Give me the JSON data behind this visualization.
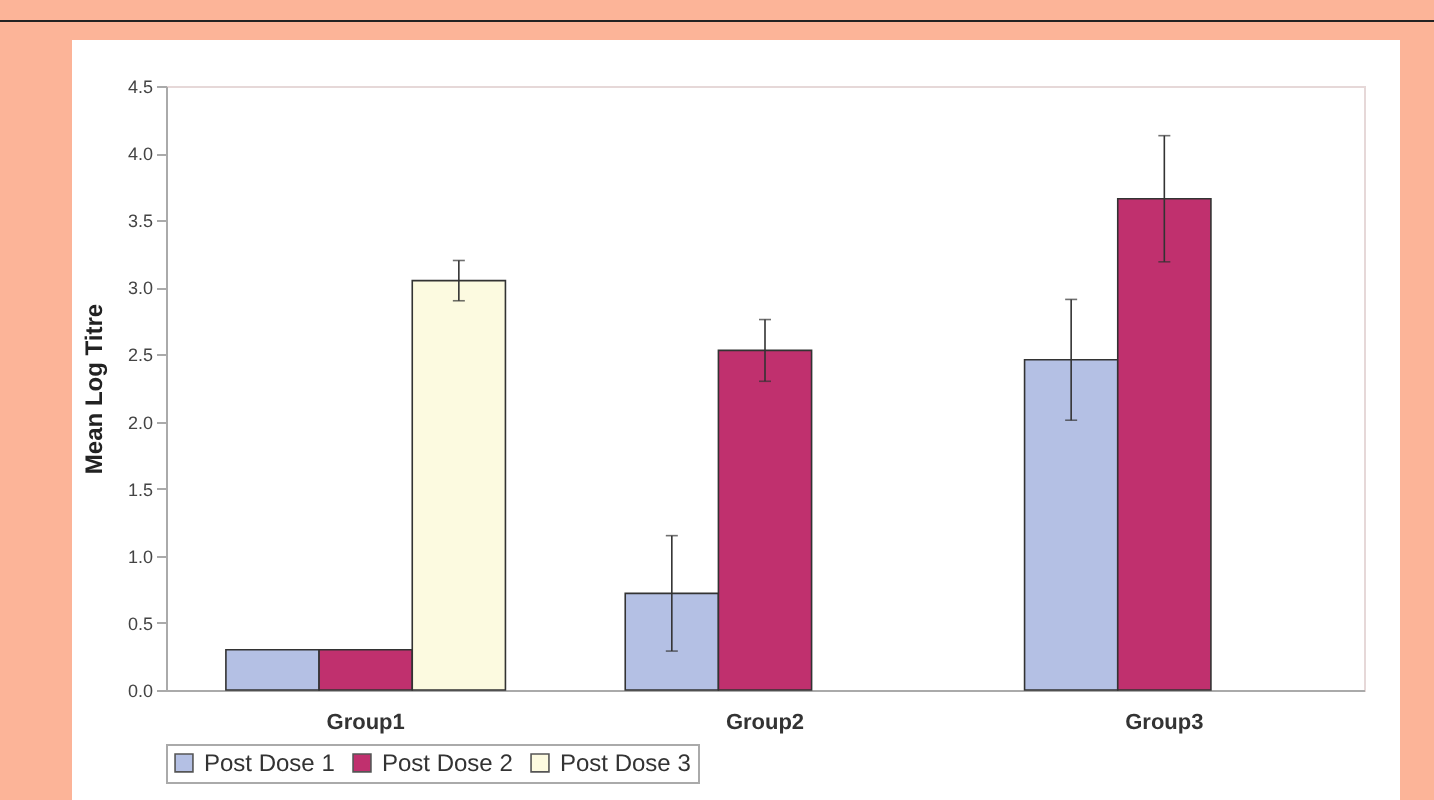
{
  "chart_data": {
    "type": "bar",
    "ylabel": "Mean Log Titre",
    "categories": [
      "Group1",
      "Group2",
      "Group3"
    ],
    "series": [
      {
        "name": "Post Dose 1",
        "color": "#b4c0e4",
        "values": [
          0.3,
          0.72,
          2.46
        ],
        "errors": [
          null,
          0.43,
          0.45
        ]
      },
      {
        "name": "Post Dose 2",
        "color": "#c0306e",
        "values": [
          0.3,
          2.53,
          3.66
        ],
        "errors": [
          null,
          0.23,
          0.47
        ]
      },
      {
        "name": "Post Dose 3",
        "color": "#fcfae0",
        "values": [
          3.05,
          null,
          null
        ],
        "errors": [
          0.15,
          null,
          null
        ]
      }
    ],
    "ylim": [
      0,
      4.5
    ],
    "yticks": [
      {
        "value": 0,
        "label": "0.0"
      },
      {
        "value": 0.5,
        "label": "0.5"
      },
      {
        "value": 1,
        "label": "1.0"
      },
      {
        "value": 1.5,
        "label": "1.5"
      },
      {
        "value": 2,
        "label": "2.0"
      },
      {
        "value": 2.5,
        "label": "2.5"
      },
      {
        "value": 3,
        "label": "3.0"
      },
      {
        "value": 3.5,
        "label": "3.5"
      },
      {
        "value": 4,
        "label": "4.0"
      },
      {
        "value": 4.5,
        "label": "4.5"
      }
    ],
    "grid": false,
    "legend": "bottom"
  }
}
